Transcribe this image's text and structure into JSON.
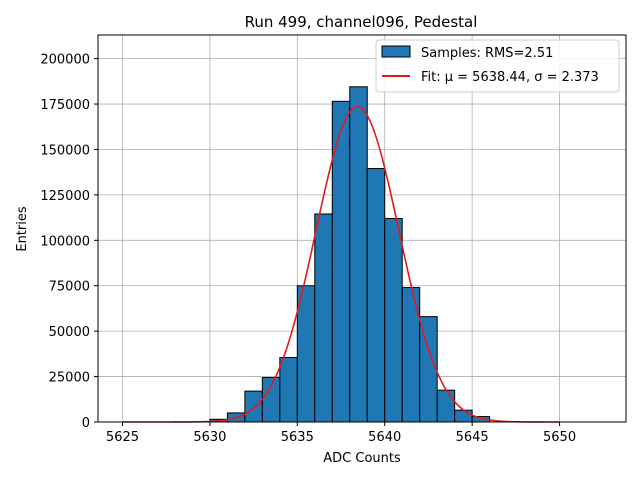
{
  "chart_data": {
    "type": "bar",
    "title": "Run 499, channel096, Pedestal",
    "xlabel": "ADC Counts",
    "ylabel": "Entries",
    "xlim": [
      5623.6,
      5653.8
    ],
    "ylim": [
      0,
      213000
    ],
    "xticks": [
      5625,
      5630,
      5635,
      5640,
      5645,
      5650
    ],
    "yticks": [
      0,
      25000,
      50000,
      75000,
      100000,
      125000,
      150000,
      175000,
      200000
    ],
    "grid": true,
    "legend_position": "top-right",
    "histogram": {
      "name": "Samples: RMS=2.51",
      "color": "#1f77b4",
      "edge_color": "#000000",
      "bin_edges": [
        5625,
        5626,
        5627,
        5628,
        5629,
        5630,
        5631,
        5632,
        5633,
        5634,
        5635,
        5636,
        5637,
        5638,
        5639,
        5640,
        5641,
        5642,
        5643,
        5644,
        5645,
        5646,
        5647,
        5648,
        5649,
        5650,
        5651,
        5652
      ],
      "counts": [
        0,
        0,
        0,
        0,
        0,
        1500,
        5000,
        17000,
        24500,
        35500,
        75000,
        114500,
        176500,
        184500,
        139500,
        112000,
        74000,
        58000,
        17500,
        6500,
        3000,
        0,
        0,
        0,
        0,
        0,
        0
      ]
    },
    "fit": {
      "name": "Fit: μ = 5638.44, σ = 2.373",
      "color": "#e31a1c",
      "type": "gaussian",
      "mu": 5638.44,
      "sigma": 2.373,
      "amplitude": 173500,
      "x_range": [
        5625,
        5650
      ]
    }
  }
}
